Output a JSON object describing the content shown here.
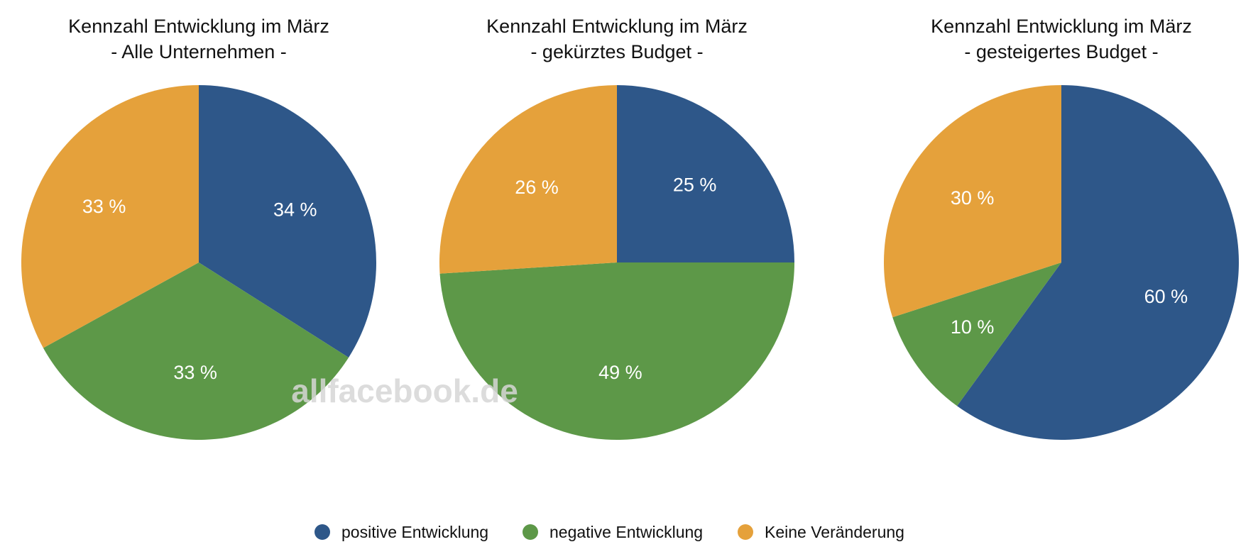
{
  "chart_data": [
    {
      "type": "pie",
      "title": "Kennzahl Entwicklung im März",
      "subtitle": "- Alle Unternehmen -",
      "categories": [
        "positive Entwicklung",
        "negative Entwicklung",
        "Keine Veränderung"
      ],
      "values": [
        34,
        33,
        33
      ],
      "labels": [
        "34 %",
        "33 %",
        "33 %"
      ]
    },
    {
      "type": "pie",
      "title": "Kennzahl Entwicklung im März",
      "subtitle": "- gekürztes Budget -",
      "categories": [
        "positive Entwicklung",
        "negative Entwicklung",
        "Keine Veränderung"
      ],
      "values": [
        25,
        49,
        26
      ],
      "labels": [
        "25 %",
        "49 %",
        "26 %"
      ]
    },
    {
      "type": "pie",
      "title": "Kennzahl Entwicklung im März",
      "subtitle": "- gesteigertes Budget -",
      "categories": [
        "positive Entwicklung",
        "negative Entwicklung",
        "Keine Veränderung"
      ],
      "values": [
        60,
        10,
        30
      ],
      "labels": [
        "60 %",
        "10 %",
        "30 %"
      ]
    }
  ],
  "legend": {
    "items": [
      {
        "label": "positive Entwicklung",
        "color": "#2e5789"
      },
      {
        "label": "negative Entwicklung",
        "color": "#5d9848"
      },
      {
        "label": "Keine Veränderung",
        "color": "#e5a13b"
      }
    ],
    "placement": "bottom-center"
  },
  "watermark": "allfacebook.de"
}
